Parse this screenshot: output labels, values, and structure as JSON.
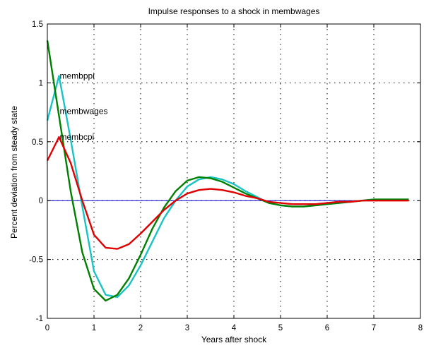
{
  "chart_data": {
    "type": "line",
    "title": "Impulse responses to a shock in membwages",
    "xlabel": "Years after shock",
    "ylabel": "Percent deviation from steady state",
    "xlim": [
      0,
      8
    ],
    "ylim": [
      -1,
      1.5
    ],
    "xticks": [
      0,
      1,
      2,
      3,
      4,
      5,
      6,
      7,
      8
    ],
    "yticks": [
      -1,
      -0.5,
      0,
      0.5,
      1,
      1.5
    ],
    "xtick_labels": [
      "0",
      "1",
      "2",
      "3",
      "4",
      "5",
      "6",
      "7",
      "8"
    ],
    "ytick_labels": [
      "-1",
      "-0.5",
      "0",
      "0.5",
      "1",
      "1.5"
    ],
    "grid": true,
    "x": [
      0,
      0.25,
      0.5,
      0.75,
      1,
      1.25,
      1.5,
      1.75,
      2,
      2.25,
      2.5,
      2.75,
      3,
      3.25,
      3.5,
      3.75,
      4,
      4.25,
      4.5,
      4.75,
      5,
      5.25,
      5.5,
      5.75,
      6,
      6.25,
      6.5,
      6.75,
      7,
      7.25,
      7.5,
      7.75
    ],
    "series": [
      {
        "name": "membppi",
        "color": "#19c3c3",
        "values": [
          0.68,
          1.06,
          0.52,
          -0.05,
          -0.6,
          -0.8,
          -0.82,
          -0.72,
          -0.55,
          -0.35,
          -0.15,
          0.0,
          0.12,
          0.18,
          0.2,
          0.18,
          0.14,
          0.08,
          0.03,
          -0.02,
          -0.04,
          -0.05,
          -0.05,
          -0.04,
          -0.03,
          -0.02,
          -0.01,
          0.0,
          0.01,
          0.01,
          0.01,
          0.01
        ]
      },
      {
        "name": "membwages",
        "color": "#008000",
        "values": [
          1.36,
          0.72,
          0.08,
          -0.44,
          -0.75,
          -0.85,
          -0.8,
          -0.66,
          -0.46,
          -0.24,
          -0.06,
          0.08,
          0.17,
          0.2,
          0.19,
          0.16,
          0.11,
          0.06,
          0.02,
          -0.02,
          -0.04,
          -0.05,
          -0.05,
          -0.04,
          -0.03,
          -0.02,
          -0.01,
          0.0,
          0.01,
          0.01,
          0.01,
          0.01
        ]
      },
      {
        "name": "membcpi",
        "color": "#e00000",
        "values": [
          0.34,
          0.54,
          0.32,
          0.0,
          -0.29,
          -0.4,
          -0.41,
          -0.37,
          -0.28,
          -0.18,
          -0.08,
          0.0,
          0.06,
          0.09,
          0.1,
          0.09,
          0.07,
          0.04,
          0.02,
          -0.01,
          -0.02,
          -0.03,
          -0.03,
          -0.03,
          -0.02,
          -0.01,
          -0.01,
          0.0,
          0.0,
          0.0,
          0.0,
          0.0
        ]
      }
    ],
    "zero_line": {
      "y": 0,
      "color": "#0000cc"
    },
    "annotations": [
      {
        "text": "membppi",
        "x": 0.25,
        "y": 1.06
      },
      {
        "text": "membwages",
        "x": 0.25,
        "y": 0.76
      },
      {
        "text": "membcpi",
        "x": 0.25,
        "y": 0.54
      }
    ]
  }
}
